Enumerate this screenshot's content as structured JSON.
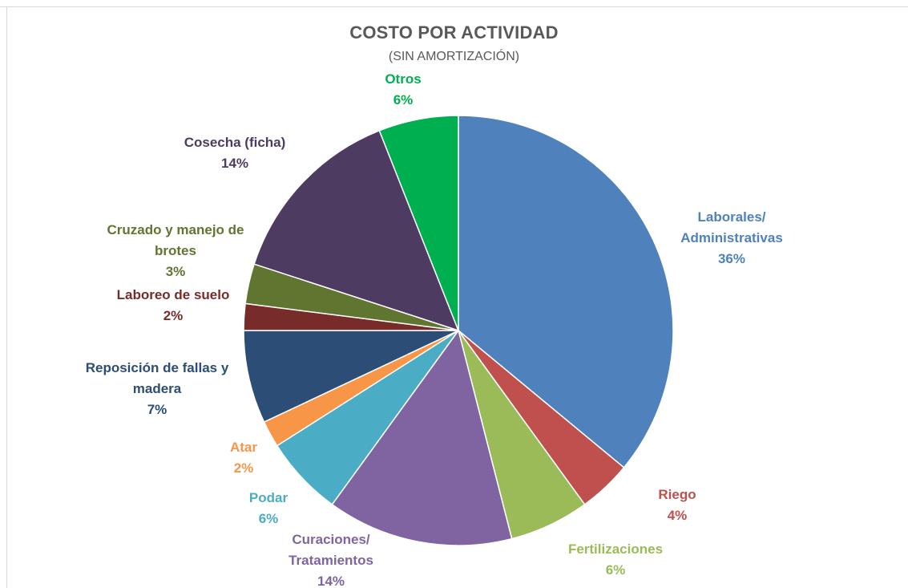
{
  "chart_data": {
    "type": "pie",
    "title": "COSTO POR ACTIVIDAD",
    "subtitle": "(SIN AMORTIZACIÓN)",
    "slices": [
      {
        "name": "Laborales/ Administrativas",
        "label_lines": [
          "Laborales/",
          "Administrativas"
        ],
        "pct_label": "36%",
        "value": 36,
        "color": "#4F81BD",
        "label_color": "#4F81BD"
      },
      {
        "name": "Riego",
        "label_lines": [
          "Riego"
        ],
        "pct_label": "4%",
        "value": 4,
        "color": "#C0504D",
        "label_color": "#C0504D"
      },
      {
        "name": "Fertilizaciones",
        "label_lines": [
          "Fertilizaciones"
        ],
        "pct_label": "6%",
        "value": 6,
        "color": "#9BBB59",
        "label_color": "#9BBB59"
      },
      {
        "name": "Curaciones/ Tratamientos",
        "label_lines": [
          "Curaciones/",
          "Tratamientos"
        ],
        "pct_label": "14%",
        "value": 14,
        "color": "#8064A2",
        "label_color": "#8064A2"
      },
      {
        "name": "Podar",
        "label_lines": [
          "Podar"
        ],
        "pct_label": "6%",
        "value": 6,
        "color": "#4BACC6",
        "label_color": "#4BACC6"
      },
      {
        "name": "Atar",
        "label_lines": [
          "Atar"
        ],
        "pct_label": "2%",
        "value": 2,
        "color": "#F79646",
        "label_color": "#F79646"
      },
      {
        "name": "Reposición de fallas y madera",
        "label_lines": [
          "Reposición de fallas y",
          "madera"
        ],
        "pct_label": "7%",
        "value": 7,
        "color": "#2C4D75",
        "label_color": "#2C4D75"
      },
      {
        "name": "Laboreo de suelo",
        "label_lines": [
          "Laboreo de suelo"
        ],
        "pct_label": "2%",
        "value": 2,
        "color": "#772C2A",
        "label_color": "#772C2A"
      },
      {
        "name": "Cruzado y manejo de brotes",
        "label_lines": [
          "Cruzado y manejo de",
          "brotes"
        ],
        "pct_label": "3%",
        "value": 3,
        "color": "#5F7530",
        "label_color": "#5F7530"
      },
      {
        "name": "Cosecha (ficha)",
        "label_lines": [
          "Cosecha (ficha)"
        ],
        "pct_label": "14%",
        "value": 14,
        "color": "#4D3B62",
        "label_color": "#4D3B62"
      },
      {
        "name": "Otros",
        "label_lines": [
          "Otros"
        ],
        "pct_label": "6%",
        "value": 6,
        "color": "#00B050",
        "label_color": "#00B050"
      }
    ],
    "start": "12 o'clock",
    "direction": "clockwise",
    "legend": "none (data labels outside slices)"
  }
}
